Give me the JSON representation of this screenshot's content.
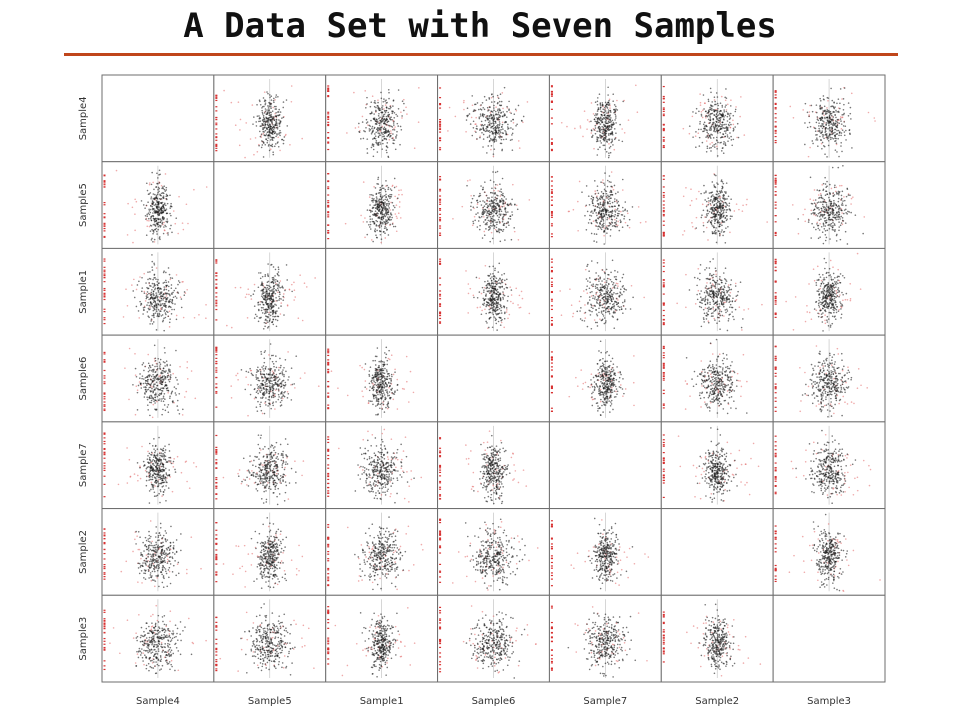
{
  "page": {
    "title": "A Data Set with Seven Samples",
    "accent_color": "#c0461b"
  },
  "chart_data": {
    "type": "scatter",
    "layout": "scatter-matrix",
    "title": "A Data Set with Seven Samples",
    "samples": [
      "Sample4",
      "Sample5",
      "Sample1",
      "Sample6",
      "Sample7",
      "Sample2",
      "Sample3"
    ],
    "row_labels": [
      "Sample4",
      "Sample5",
      "Sample1",
      "Sample6",
      "Sample7",
      "Sample2",
      "Sample3"
    ],
    "column_labels": [
      "Sample4",
      "Sample5",
      "Sample1",
      "Sample6",
      "Sample7",
      "Sample2",
      "Sample3"
    ],
    "diagonal": "empty",
    "grid": false,
    "legend": "none",
    "colors": {
      "points": "#1a1a1a",
      "outliers": "#e05555",
      "margin_strip": "#d83030",
      "frame": "#6e6e6e"
    }
  }
}
